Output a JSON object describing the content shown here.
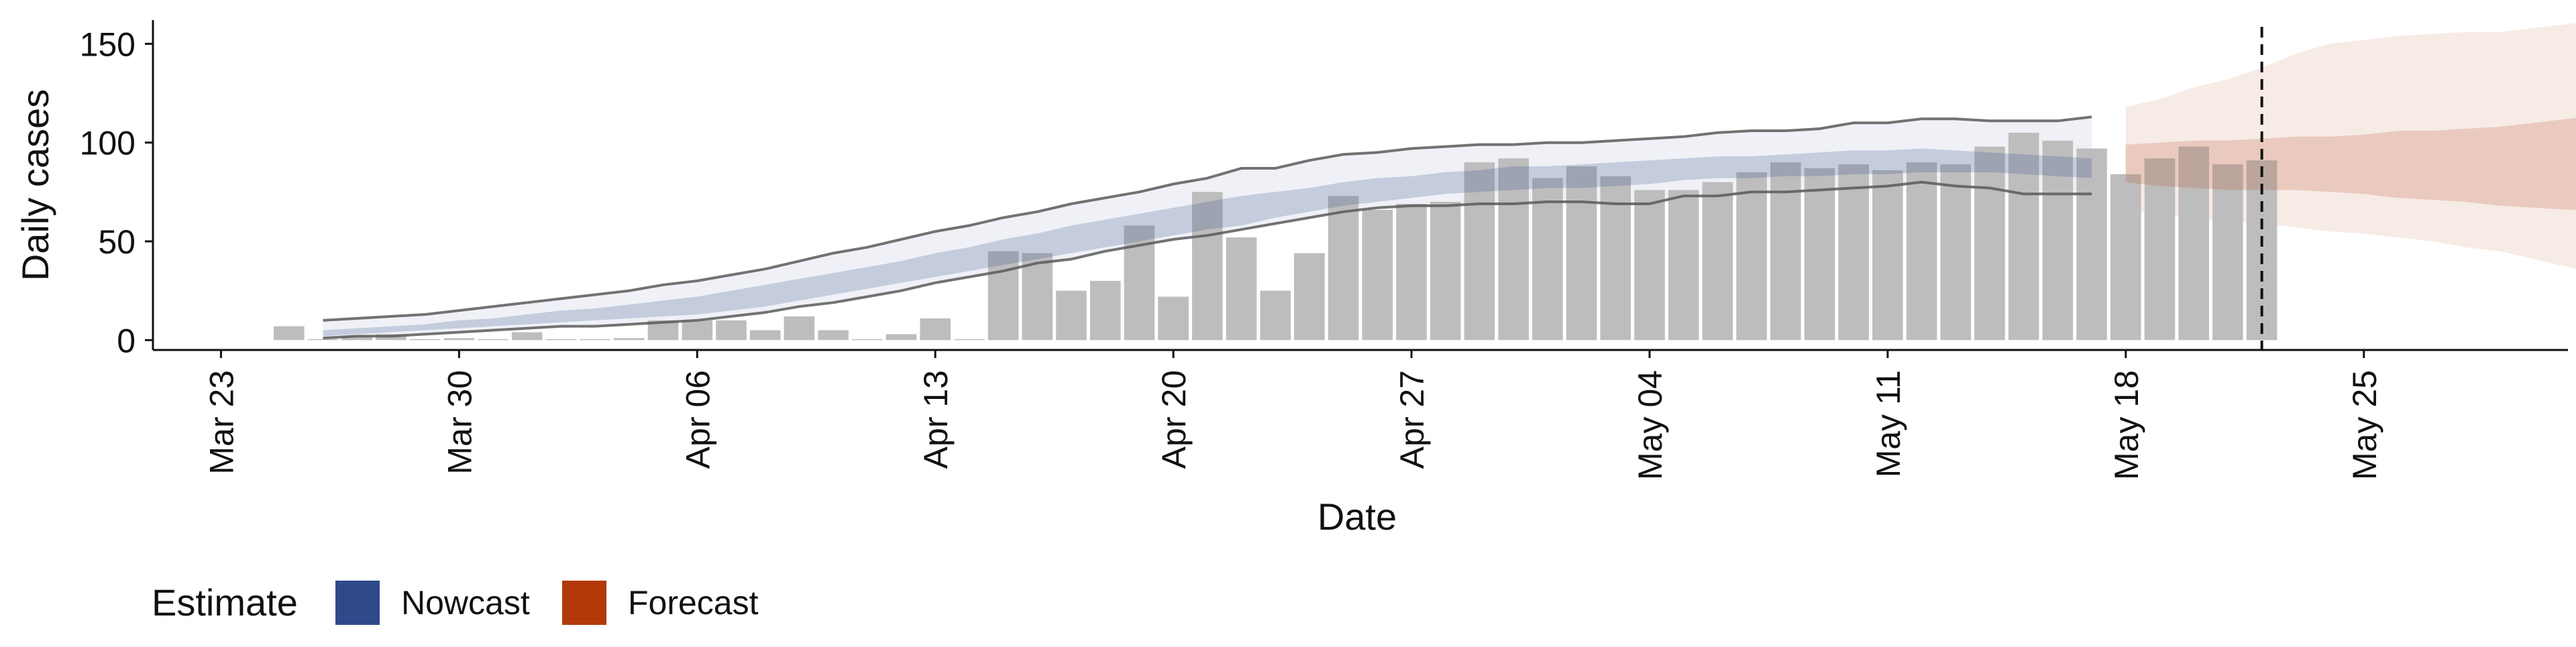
{
  "chart_data": {
    "type": "bar",
    "xlabel": "Date",
    "ylabel": "Daily cases",
    "ylim": [
      -5,
      162
    ],
    "y_ticks": [
      0,
      50,
      100,
      150
    ],
    "x_range": [
      "2020-03-21",
      "2020-05-31"
    ],
    "x_ticks": [
      {
        "date": "2020-03-23",
        "label": "Mar 23"
      },
      {
        "date": "2020-03-30",
        "label": "Mar 30"
      },
      {
        "date": "2020-04-06",
        "label": "Apr 06"
      },
      {
        "date": "2020-04-13",
        "label": "Apr 13"
      },
      {
        "date": "2020-04-20",
        "label": "Apr 20"
      },
      {
        "date": "2020-04-27",
        "label": "Apr 27"
      },
      {
        "date": "2020-05-04",
        "label": "May 04"
      },
      {
        "date": "2020-05-11",
        "label": "May 11"
      },
      {
        "date": "2020-05-18",
        "label": "May 18"
      },
      {
        "date": "2020-05-25",
        "label": "May 25"
      }
    ],
    "bar_start_date": "2020-03-25",
    "reported_cases": [
      7,
      0,
      2,
      3,
      0,
      1,
      0,
      4,
      0,
      0,
      1,
      10,
      10,
      10,
      5,
      12,
      5,
      0,
      3,
      11,
      0,
      45,
      44,
      25,
      30,
      58,
      22,
      75,
      52,
      25,
      44,
      73,
      66,
      69,
      70,
      90,
      92,
      82,
      88,
      83,
      76,
      76,
      80,
      85,
      90,
      87,
      89,
      86,
      90,
      89,
      98,
      105,
      101,
      97,
      84,
      92,
      98,
      89,
      91
    ],
    "estimate_start_date": "2020-03-26",
    "nowcast": {
      "upper90": [
        10,
        11,
        12,
        13,
        15,
        17,
        19,
        21,
        23,
        25,
        28,
        30,
        33,
        36,
        40,
        44,
        47,
        51,
        55,
        58,
        62,
        65,
        69,
        72,
        75,
        79,
        82,
        87,
        87,
        91,
        94,
        95,
        97,
        98,
        99,
        99,
        100,
        100,
        101,
        102,
        103,
        105,
        106,
        106,
        107,
        110,
        110,
        112,
        112,
        111,
        111,
        111,
        113
      ],
      "upper50": [
        5,
        6,
        7,
        8,
        10,
        11,
        13,
        15,
        16,
        18,
        20,
        22,
        25,
        28,
        31,
        34,
        37,
        40,
        44,
        47,
        51,
        54,
        58,
        61,
        64,
        67,
        70,
        73,
        75,
        77,
        80,
        82,
        83,
        85,
        86,
        88,
        88,
        89,
        90,
        91,
        92,
        93,
        93,
        94,
        95,
        96,
        96,
        97,
        96,
        95,
        94,
        93,
        92
      ],
      "lower50": [
        2,
        3,
        4,
        5,
        6,
        7,
        8,
        9,
        10,
        11,
        12,
        13,
        15,
        17,
        20,
        23,
        26,
        29,
        32,
        35,
        38,
        41,
        44,
        47,
        50,
        53,
        56,
        58,
        62,
        65,
        68,
        70,
        72,
        74,
        75,
        76,
        77,
        77,
        78,
        79,
        81,
        82,
        82,
        83,
        83,
        84,
        84,
        85,
        85,
        85,
        84,
        83,
        82
      ],
      "lower90": [
        1,
        2,
        2,
        3,
        4,
        5,
        6,
        7,
        7,
        8,
        9,
        10,
        12,
        14,
        17,
        19,
        22,
        25,
        29,
        32,
        35,
        39,
        41,
        45,
        48,
        51,
        53,
        56,
        59,
        62,
        65,
        67,
        68,
        68,
        69,
        69,
        70,
        70,
        69,
        69,
        73,
        73,
        75,
        75,
        76,
        77,
        78,
        80,
        78,
        77,
        74,
        74,
        74
      ]
    },
    "forecast_start_date": "2020-05-18",
    "forecast": {
      "upper90": [
        118,
        122,
        128,
        132,
        138,
        145,
        150,
        152,
        154,
        155,
        156,
        156,
        158,
        160,
        162
      ],
      "upper50": [
        99,
        100,
        101,
        101,
        102,
        103,
        103,
        104,
        106,
        106,
        107,
        108,
        110,
        112,
        114
      ],
      "lower50": [
        80,
        78,
        77,
        76,
        76,
        76,
        75,
        74,
        72,
        71,
        70,
        68,
        67,
        66,
        65
      ],
      "lower90": [
        65,
        64,
        62,
        60,
        59,
        57,
        55,
        54,
        52,
        50,
        47,
        45,
        41,
        37,
        32
      ]
    },
    "vline_date": "2020-05-22",
    "legend": {
      "title": "Estimate",
      "position": "bottom-left",
      "items": [
        {
          "label": "Nowcast",
          "color": "#2f4a8a"
        },
        {
          "label": "Forecast",
          "color": "#b23a0a"
        }
      ]
    },
    "colors": {
      "bars": "#bdbdbd",
      "nowcast": "#2f4a8a",
      "forecast": "#b23a0a",
      "bound_line": "#5a5a5a",
      "axis": "#111111"
    }
  }
}
